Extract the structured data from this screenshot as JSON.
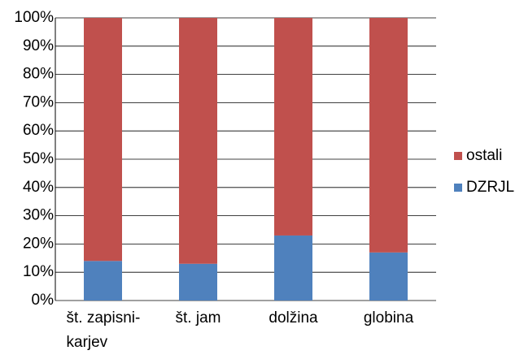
{
  "chart_data": {
    "type": "stacked_bar",
    "categories": [
      "št. zapisni-\nkarjev",
      "št. jam",
      "dolžina",
      "globina"
    ],
    "series": [
      {
        "name": "DZRJL",
        "color": "#4f81bd",
        "values": [
          14,
          13,
          23,
          17
        ]
      },
      {
        "name": "ostali",
        "color": "#c0504d",
        "values": [
          86,
          87,
          77,
          83
        ]
      }
    ],
    "ylim": [
      0,
      100
    ],
    "yticks": [
      {
        "value": 0,
        "label": "0%"
      },
      {
        "value": 10,
        "label": "10%"
      },
      {
        "value": 20,
        "label": "20%"
      },
      {
        "value": 30,
        "label": "30%"
      },
      {
        "value": 40,
        "label": "40%"
      },
      {
        "value": 50,
        "label": "50%"
      },
      {
        "value": 60,
        "label": "60%"
      },
      {
        "value": 70,
        "label": "70%"
      },
      {
        "value": 80,
        "label": "80%"
      },
      {
        "value": 90,
        "label": "90%"
      },
      {
        "value": 100,
        "label": "100%"
      }
    ],
    "grid": true,
    "legend": "right"
  }
}
